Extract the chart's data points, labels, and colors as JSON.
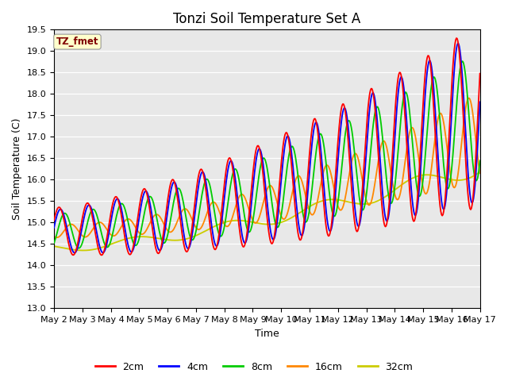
{
  "title": "Tonzi Soil Temperature Set A",
  "xlabel": "Time",
  "ylabel": "Soil Temperature (C)",
  "ylim": [
    13.0,
    19.5
  ],
  "yticks": [
    13.0,
    13.5,
    14.0,
    14.5,
    15.0,
    15.5,
    16.0,
    16.5,
    17.0,
    17.5,
    18.0,
    18.5,
    19.0,
    19.5
  ],
  "xtick_labels": [
    "May 2",
    "May 3",
    "May 4",
    "May 5",
    "May 6",
    "May 7",
    "May 8",
    "May 9",
    "May 10",
    "May 11",
    "May 12",
    "May 13",
    "May 14",
    "May 15",
    "May 16",
    "May 17"
  ],
  "legend_label": "TZ_fmet",
  "legend_box_color": "#ffffcc",
  "legend_text_color": "#800000",
  "line_colors": {
    "2cm": "#ff0000",
    "4cm": "#0000ff",
    "8cm": "#00cc00",
    "16cm": "#ff8800",
    "32cm": "#cccc00"
  },
  "background_color": "#e8e8e8",
  "days": 15,
  "n_points": 600,
  "title_fontsize": 12,
  "axis_label_fontsize": 9,
  "tick_fontsize": 8
}
